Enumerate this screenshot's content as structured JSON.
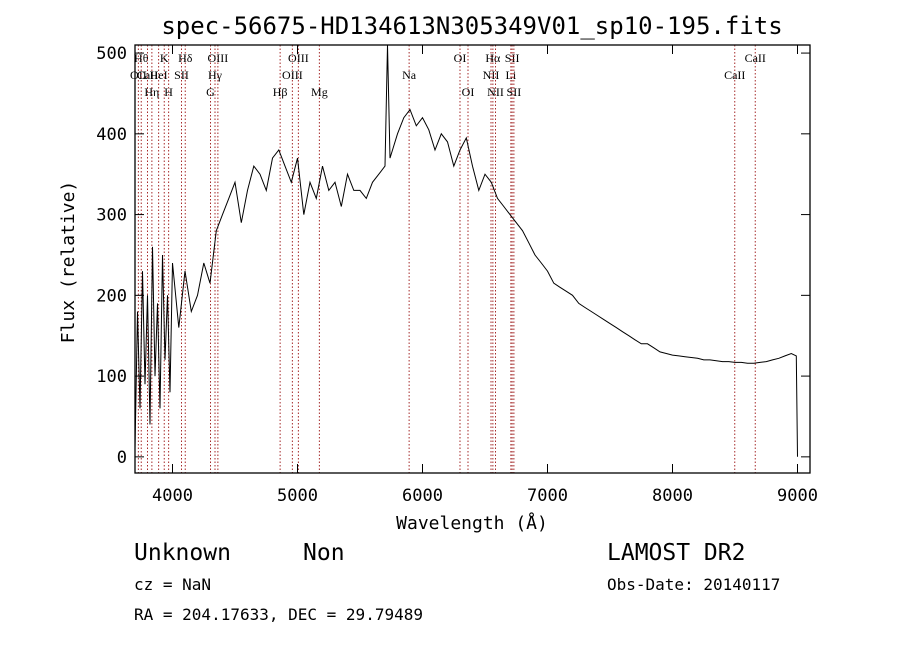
{
  "chart_data": {
    "type": "line",
    "title": "spec-56675-HD134613N305349V01_sp10-195.fits",
    "xlabel": "Wavelength (Å)",
    "ylabel": "Flux (relative)",
    "xlim": [
      3700,
      9100
    ],
    "ylim": [
      -20,
      510
    ],
    "x_ticks": [
      4000,
      5000,
      6000,
      7000,
      8000,
      9000
    ],
    "y_ticks": [
      0,
      100,
      200,
      300,
      400,
      500
    ],
    "grid": false,
    "series": [
      {
        "x": [
          3700,
          3720,
          3740,
          3760,
          3780,
          3800,
          3820,
          3840,
          3860,
          3880,
          3900,
          3920,
          3940,
          3960,
          3980,
          4000,
          4050,
          4100,
          4150,
          4200,
          4250,
          4300,
          4350,
          4400,
          4450,
          4500,
          4550,
          4600,
          4650,
          4700,
          4750,
          4800,
          4850,
          4900,
          4950,
          5000,
          5050,
          5100,
          5150,
          5200,
          5250,
          5300,
          5350,
          5400,
          5450,
          5500,
          5550,
          5600,
          5650,
          5700,
          5720,
          5740,
          5800,
          5850,
          5900,
          5950,
          6000,
          6050,
          6100,
          6150,
          6200,
          6250,
          6300,
          6350,
          6400,
          6450,
          6500,
          6550,
          6600,
          6650,
          6700,
          6750,
          6800,
          6850,
          6900,
          6950,
          7000,
          7050,
          7100,
          7150,
          7200,
          7250,
          7300,
          7350,
          7400,
          7450,
          7500,
          7550,
          7600,
          7650,
          7700,
          7750,
          7800,
          7850,
          7900,
          7950,
          8000,
          8050,
          8100,
          8150,
          8200,
          8250,
          8300,
          8350,
          8400,
          8450,
          8500,
          8550,
          8600,
          8650,
          8700,
          8750,
          8800,
          8850,
          8900,
          8950,
          8990,
          9000
        ],
        "values": [
          10,
          180,
          60,
          230,
          90,
          200,
          40,
          260,
          100,
          190,
          60,
          250,
          120,
          200,
          80,
          240,
          160,
          230,
          180,
          200,
          240,
          215,
          280,
          300,
          320,
          340,
          290,
          330,
          360,
          350,
          330,
          370,
          380,
          360,
          340,
          370,
          300,
          340,
          320,
          360,
          330,
          340,
          310,
          350,
          330,
          330,
          320,
          340,
          350,
          360,
          510,
          370,
          400,
          420,
          430,
          410,
          420,
          405,
          380,
          400,
          390,
          360,
          380,
          395,
          360,
          330,
          350,
          340,
          320,
          310,
          300,
          290,
          280,
          265,
          250,
          240,
          230,
          215,
          210,
          205,
          200,
          190,
          185,
          180,
          175,
          170,
          165,
          160,
          155,
          150,
          145,
          140,
          140,
          135,
          130,
          128,
          126,
          125,
          124,
          123,
          122,
          120,
          120,
          119,
          118,
          118,
          117,
          117,
          116,
          116,
          117,
          118,
          120,
          122,
          125,
          128,
          125,
          0
        ]
      }
    ],
    "line_markers": [
      {
        "wavelength": 3727,
        "label": "OII",
        "row": 2
      },
      {
        "wavelength": 3750,
        "label": "Hθ",
        "row": 1
      },
      {
        "wavelength": 3800,
        "label": "CaII",
        "row": 2
      },
      {
        "wavelength": 3835,
        "label": "Hη",
        "row": 3
      },
      {
        "wavelength": 3889,
        "label": "HeI",
        "row": 2
      },
      {
        "wavelength": 3934,
        "label": "K",
        "row": 1
      },
      {
        "wavelength": 3969,
        "label": "H",
        "row": 3
      },
      {
        "wavelength": 4072,
        "label": "SII",
        "row": 2
      },
      {
        "wavelength": 4102,
        "label": "Hδ",
        "row": 1
      },
      {
        "wavelength": 4304,
        "label": "G",
        "row": 3
      },
      {
        "wavelength": 4340,
        "label": "Hγ",
        "row": 2
      },
      {
        "wavelength": 4363,
        "label": "OIII",
        "row": 1
      },
      {
        "wavelength": 4861,
        "label": "Hβ",
        "row": 3
      },
      {
        "wavelength": 4959,
        "label": "OIII",
        "row": 2
      },
      {
        "wavelength": 5007,
        "label": "OIII",
        "row": 1
      },
      {
        "wavelength": 5175,
        "label": "Mg",
        "row": 3
      },
      {
        "wavelength": 5893,
        "label": "Na",
        "row": 2
      },
      {
        "wavelength": 6300,
        "label": "OI",
        "row": 1
      },
      {
        "wavelength": 6364,
        "label": "OI",
        "row": 3
      },
      {
        "wavelength": 6548,
        "label": "NII",
        "row": 2
      },
      {
        "wavelength": 6563,
        "label": "Hα",
        "row": 1
      },
      {
        "wavelength": 6584,
        "label": "NII",
        "row": 3
      },
      {
        "wavelength": 6707,
        "label": "Li",
        "row": 2
      },
      {
        "wavelength": 6717,
        "label": "SII",
        "row": 1
      },
      {
        "wavelength": 6731,
        "label": "SII",
        "row": 3
      },
      {
        "wavelength": 8498,
        "label": "CaII",
        "row": 2
      },
      {
        "wavelength": 8662,
        "label": "CaII",
        "row": 1
      }
    ]
  },
  "info": {
    "object_class": "Unknown",
    "subclass": "Non",
    "survey": "LAMOST DR2",
    "cz": "cz = NaN",
    "obs_date": "Obs-Date: 20140117",
    "coords": "RA = 204.17633, DEC =  29.79489"
  },
  "colors": {
    "axis": "#000000",
    "spectrum": "#000000",
    "marker_line": "#a52a2a"
  }
}
